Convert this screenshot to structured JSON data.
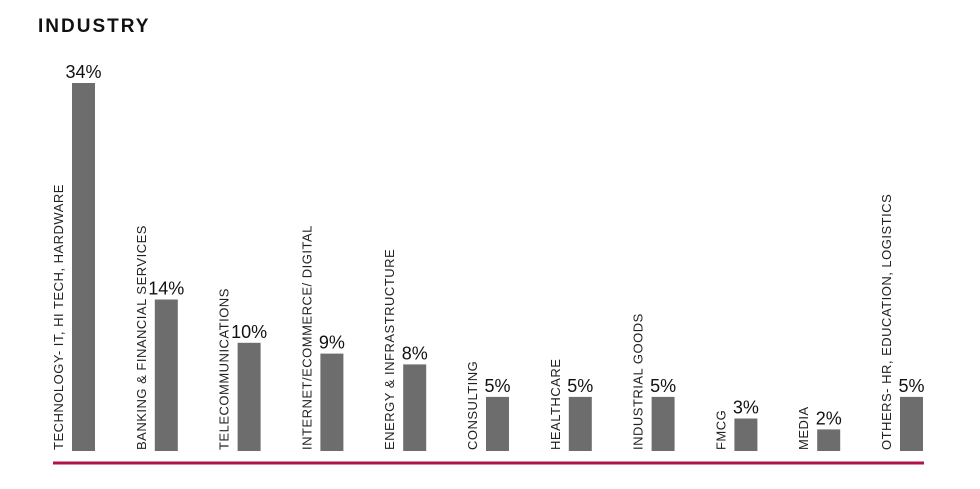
{
  "title": "INDUSTRY",
  "colors": {
    "bar": "#6d6d6d",
    "baseline": "#b0154a"
  },
  "chart_data": {
    "type": "bar",
    "title": "INDUSTRY",
    "categories": [
      "TECHNOLOGY- IT, HI TECH, HARDWARE",
      "BANKING & FINANCIAL SERVICES",
      "TELECOMMUNICATIONS",
      "INTERNET/ECOMMERCE/ DIGITAL",
      "ENERGY & INFRASTRUCTURE",
      "CONSULTING",
      "HEALTHCARE",
      "INDUSTRIAL GOODS",
      "FMCG",
      "MEDIA",
      "OTHERS- HR, EDUCATION, LOGISTICS"
    ],
    "values": [
      34,
      14,
      10,
      9,
      8,
      5,
      5,
      5,
      3,
      2,
      5
    ],
    "value_labels": [
      "34%",
      "14%",
      "10%",
      "9%",
      "8%",
      "5%",
      "5%",
      "5%",
      "3%",
      "2%",
      "5%"
    ],
    "ylim": [
      0,
      34
    ],
    "grid": false,
    "legend": "none"
  }
}
